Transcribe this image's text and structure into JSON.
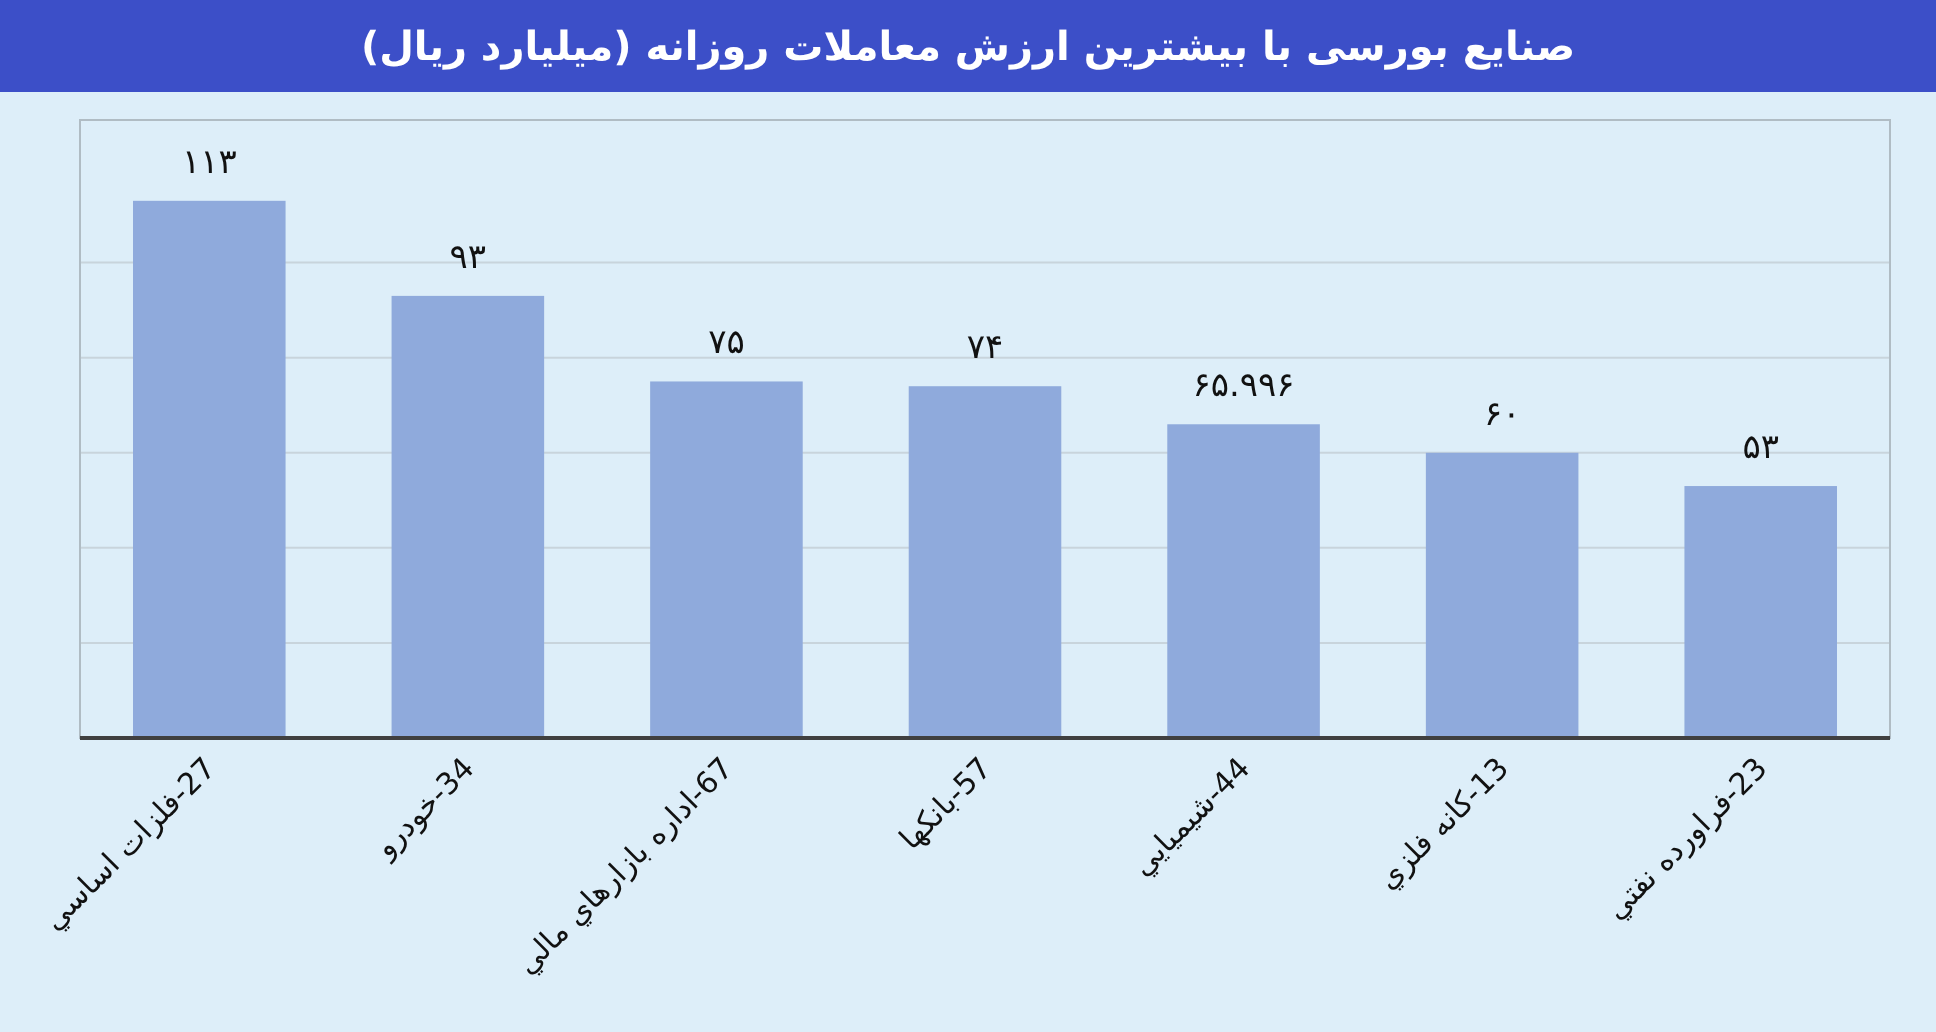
{
  "chart_data": {
    "type": "bar",
    "title": "صنایع بورسی با بیشترین ارزش معاملات روزانه (میلیارد ریال)",
    "categories": [
      "27-فلزات اساسي",
      "34-خودرو",
      "67-اداره بازارهاي مالي",
      "57-بانكها",
      "44-شيميايي",
      "13-كانه فلزي",
      "23-فراورده نفتي"
    ],
    "values": [
      113,
      93,
      75,
      74,
      65.996,
      60,
      53
    ],
    "value_labels": [
      "۱۱۳",
      "۹۳",
      "۷۵",
      "۷۴",
      "۶۵.۹۹۶",
      "۶۰",
      "۵۳"
    ],
    "color": "#8faadc",
    "ylim": [
      0,
      130
    ],
    "yticks": [
      {
        "value": 0,
        "label": null
      },
      {
        "value": 20,
        "label": null
      },
      {
        "value": 40,
        "label": null
      },
      {
        "value": 60,
        "label": null
      },
      {
        "value": 80,
        "label": null
      },
      {
        "value": 100,
        "label": null
      }
    ],
    "grid": "y"
  }
}
